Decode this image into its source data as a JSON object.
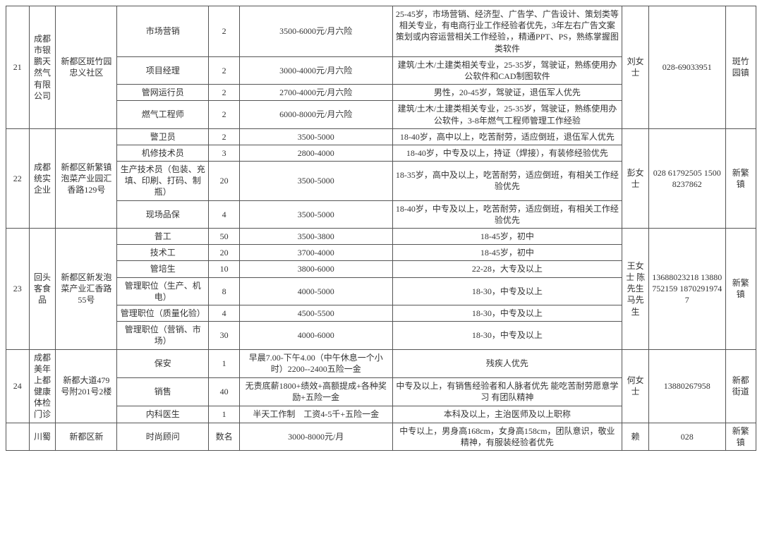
{
  "rows": [
    {
      "idx": "21",
      "company": "成都市银鹏天然气有限公司",
      "address": "新都区斑竹园忠义社区",
      "contact": "刘女士",
      "phone": "028-69033951",
      "location": "斑竹园镇",
      "jobs": [
        {
          "position": "市场营销",
          "count": "2",
          "salary": "3500-6000元/月六险",
          "req": "25-45岁，市场营销、经济型、广告学、广告设计、策划类等相关专业，有电商行业工作经验者优先，3年左右广告文案策划或内容运营相关工作经验，，精通PPT、PS，熟练掌握图类软件"
        },
        {
          "position": "项目经理",
          "count": "2",
          "salary": "3000-4000元/月六险",
          "req": "建筑/土木/土建类相关专业，25-35岁，驾驶证，熟练使用办公软件和CAD制图软件"
        },
        {
          "position": "管网运行员",
          "count": "2",
          "salary": "2700-4000元/月六险",
          "req": "男性，20-45岁，驾驶证，退伍军人优先"
        },
        {
          "position": "燃气工程师",
          "count": "2",
          "salary": "6000-8000元/月六险",
          "req": "建筑/土木/土建类相关专业，25-35岁，驾驶证，熟练使用办公软件，3-8年燃气工程师管理工作经验"
        }
      ]
    },
    {
      "idx": "22",
      "company": "成都统实企业",
      "address": "新都区新繁镇泡菜产业园汇香路129号",
      "contact": "彭女士",
      "phone": "028 61792505 15008237862",
      "location": "新繁镇",
      "jobs": [
        {
          "position": "警卫员",
          "count": "2",
          "salary": "3500-5000",
          "req": "18-40岁，高中以上，吃苦耐劳，适应倒班，退伍军人优先"
        },
        {
          "position": "机修技术员",
          "count": "3",
          "salary": "2800-4000",
          "req": "18-40岁，中专及以上，持证（焊接），有装修经验优先"
        },
        {
          "position": "生产技术员（包装、充填、印刷、打码、制瓶）",
          "count": "20",
          "salary": "3500-5000",
          "req": "18-35岁，高中及以上，吃苦耐劳，适应倒班，有相关工作经验优先"
        },
        {
          "position": "现场品保",
          "count": "4",
          "salary": "3500-5000",
          "req": "18-40岁，中专及以上，吃苦耐劳，适应倒班，有相关工作经验优先"
        }
      ]
    },
    {
      "idx": "23",
      "company": "回头客食品",
      "address": "新都区新发泡菜产业汇香路55号",
      "contact": "王女士 陈先生 马先生",
      "phone": "13688023218 13880752159 18702919747",
      "location": "新繁镇",
      "jobs": [
        {
          "position": "普工",
          "count": "50",
          "salary": "3500-3800",
          "req": "18-45岁，初中"
        },
        {
          "position": "技术工",
          "count": "20",
          "salary": "3700-4000",
          "req": "18-45岁，初中"
        },
        {
          "position": "管培生",
          "count": "10",
          "salary": "3800-6000",
          "req": "22-28，大专及以上"
        },
        {
          "position": "管理职位（生产、机电）",
          "count": "8",
          "salary": "4000-5000",
          "req": "18-30，中专及以上"
        },
        {
          "position": "管理职位（质量化验）",
          "count": "4",
          "salary": "4500-5500",
          "req": "18-30，中专及以上"
        },
        {
          "position": "管理职位（营销、市场）",
          "count": "30",
          "salary": "4000-6000",
          "req": "18-30，中专及以上"
        }
      ]
    },
    {
      "idx": "24",
      "company": "成都美年上都健康体检门诊",
      "address": "新都大道479号附201号2楼",
      "contact": "何女士",
      "phone": "13880267958",
      "location": "新都街道",
      "jobs": [
        {
          "position": "保安",
          "count": "1",
          "salary": "早晨7.00-下午4.00（中午休息一个小时）2200--2400五险一金",
          "req": "残疾人优先"
        },
        {
          "position": "销售",
          "count": "40",
          "salary": "无责底薪1800+绩效+高额提成+各种奖励+五险一金",
          "req": "中专及以上，有销售经验者和人脉者优先 能吃苦耐劳愿意学习 有团队精神"
        },
        {
          "position": "内科医生",
          "count": "1",
          "salary": "半天工作制　工资4-5千+五险一金",
          "req": "本科及以上，主治医师及以上职称"
        }
      ]
    },
    {
      "idx": "",
      "company": "川蜀",
      "address": "新都区新",
      "contact": "赖",
      "phone": "028",
      "location": "新繁镇",
      "jobs": [
        {
          "position": "时尚顾问",
          "count": "数名",
          "salary": "3000-8000元/月",
          "req": "中专以上，男身高168cm，女身高158cm，团队意识，敬业精神，有服装经验者优先"
        }
      ]
    }
  ]
}
